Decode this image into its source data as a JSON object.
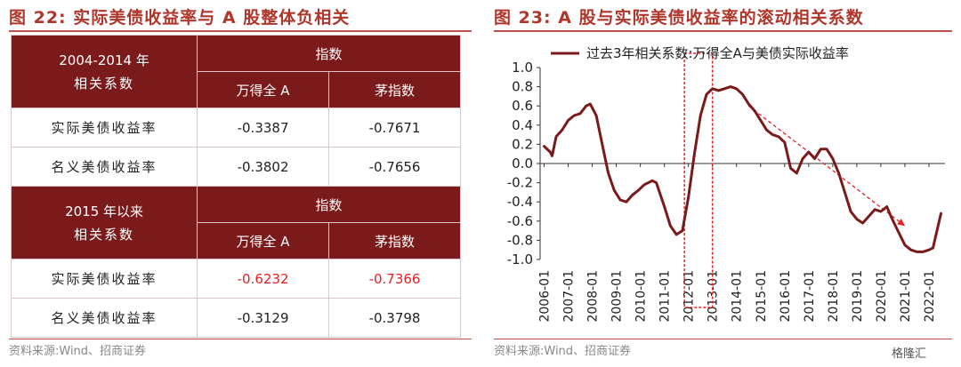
{
  "left_panel": {
    "title": "图 22:  实际美债收益率与 A 股整体负相关",
    "source": "资料来源:Wind、招商证券",
    "sections": [
      {
        "period_line1": "2004-2014 年",
        "period_line2": "相关系数",
        "group_header": "指数",
        "col1": "万得全 A",
        "col2": "茅指数",
        "rows": [
          {
            "label": "实际美债收益率",
            "v1": "-0.3387",
            "v2": "-0.7671"
          },
          {
            "label": "名义美债收益率",
            "v1": "-0.3802",
            "v2": "-0.7656"
          }
        ]
      },
      {
        "period_line1": "2015 年以来",
        "period_line2": "相关系数",
        "group_header": "指数",
        "col1": "万得全 A",
        "col2": "茅指数",
        "rows": [
          {
            "label": "实际美债收益率",
            "v1": "-0.6232",
            "v2": "-0.7366"
          },
          {
            "label": "名义美债收益率",
            "v1": "-0.3129",
            "v2": "-0.3798"
          }
        ]
      }
    ],
    "highlight_color": "#e82020",
    "header_color": "#7b1a1a"
  },
  "right_panel": {
    "title": "图 23:  A 股与实际美债收益率的滚动相关系数",
    "source": "资料来源:Wind、招商证券",
    "watermark": "格隆汇"
  },
  "chart_data": {
    "type": "line",
    "title": "图 23:  A 股与实际美债收益率的滚动相关系数",
    "xlabel": "",
    "ylabel": "",
    "ylim": [
      -1.0,
      1.0
    ],
    "yticks": [
      "1.0",
      "0.8",
      "0.6",
      "0.4",
      "0.2",
      "0.0",
      "-0.2",
      "-0.4",
      "-0.6",
      "-0.8",
      "-1.0"
    ],
    "xticks": [
      "2006-01",
      "2007-01",
      "2008-01",
      "2009-01",
      "2010-01",
      "2011-01",
      "2012-01",
      "2013-01",
      "2014-01",
      "2015-01",
      "2016-01",
      "2017-01",
      "2018-01",
      "2019-01",
      "2020-01",
      "2021-01",
      "2022-01"
    ],
    "legend_position": "top",
    "grid": false,
    "series": [
      {
        "name": "过去3年相关系数:万得全A与美债实际收益率",
        "color": "#7b1a1a",
        "points": [
          [
            "2006-01",
            0.18
          ],
          [
            "2006-04",
            0.12
          ],
          [
            "2006-05",
            0.08
          ],
          [
            "2006-07",
            0.28
          ],
          [
            "2006-10",
            0.35
          ],
          [
            "2007-01",
            0.45
          ],
          [
            "2007-04",
            0.5
          ],
          [
            "2007-07",
            0.52
          ],
          [
            "2007-10",
            0.6
          ],
          [
            "2007-12",
            0.62
          ],
          [
            "2008-03",
            0.5
          ],
          [
            "2008-06",
            0.2
          ],
          [
            "2008-09",
            -0.1
          ],
          [
            "2008-12",
            -0.28
          ],
          [
            "2009-03",
            -0.38
          ],
          [
            "2009-06",
            -0.4
          ],
          [
            "2009-09",
            -0.33
          ],
          [
            "2009-12",
            -0.28
          ],
          [
            "2010-03",
            -0.22
          ],
          [
            "2010-07",
            -0.18
          ],
          [
            "2010-09",
            -0.2
          ],
          [
            "2011-01",
            -0.45
          ],
          [
            "2011-04",
            -0.65
          ],
          [
            "2011-07",
            -0.74
          ],
          [
            "2011-10",
            -0.7
          ],
          [
            "2012-01",
            -0.35
          ],
          [
            "2012-04",
            0.1
          ],
          [
            "2012-07",
            0.5
          ],
          [
            "2012-10",
            0.72
          ],
          [
            "2013-01",
            0.78
          ],
          [
            "2013-04",
            0.76
          ],
          [
            "2013-07",
            0.78
          ],
          [
            "2013-10",
            0.8
          ],
          [
            "2014-01",
            0.78
          ],
          [
            "2014-04",
            0.72
          ],
          [
            "2014-07",
            0.62
          ],
          [
            "2014-10",
            0.55
          ],
          [
            "2015-01",
            0.45
          ],
          [
            "2015-04",
            0.35
          ],
          [
            "2015-07",
            0.3
          ],
          [
            "2015-10",
            0.28
          ],
          [
            "2016-01",
            0.22
          ],
          [
            "2016-04",
            -0.05
          ],
          [
            "2016-07",
            -0.1
          ],
          [
            "2016-10",
            0.05
          ],
          [
            "2017-01",
            0.12
          ],
          [
            "2017-04",
            0.05
          ],
          [
            "2017-07",
            0.15
          ],
          [
            "2017-10",
            0.15
          ],
          [
            "2018-01",
            0.05
          ],
          [
            "2018-04",
            -0.1
          ],
          [
            "2018-07",
            -0.3
          ],
          [
            "2018-10",
            -0.5
          ],
          [
            "2019-01",
            -0.58
          ],
          [
            "2019-04",
            -0.62
          ],
          [
            "2019-07",
            -0.55
          ],
          [
            "2019-10",
            -0.48
          ],
          [
            "2020-01",
            -0.5
          ],
          [
            "2020-04",
            -0.45
          ],
          [
            "2020-06",
            -0.55
          ],
          [
            "2020-09",
            -0.68
          ],
          [
            "2021-01",
            -0.85
          ],
          [
            "2021-04",
            -0.9
          ],
          [
            "2021-07",
            -0.92
          ],
          [
            "2021-10",
            -0.92
          ],
          [
            "2022-01",
            -0.9
          ],
          [
            "2022-03",
            -0.88
          ],
          [
            "2022-05",
            -0.7
          ],
          [
            "2022-07",
            -0.52
          ]
        ]
      }
    ],
    "annotations": [
      {
        "kind": "dashed-box",
        "x_start": "2011-11",
        "x_end": "2013-01",
        "y_top": 1.0,
        "y_bottom": -1.0,
        "color": "#e82020"
      },
      {
        "kind": "dashed-arrow",
        "from": [
          "2014-07",
          0.6
        ],
        "to": [
          "2021-01",
          -0.65
        ],
        "color": "#e82020"
      }
    ]
  }
}
